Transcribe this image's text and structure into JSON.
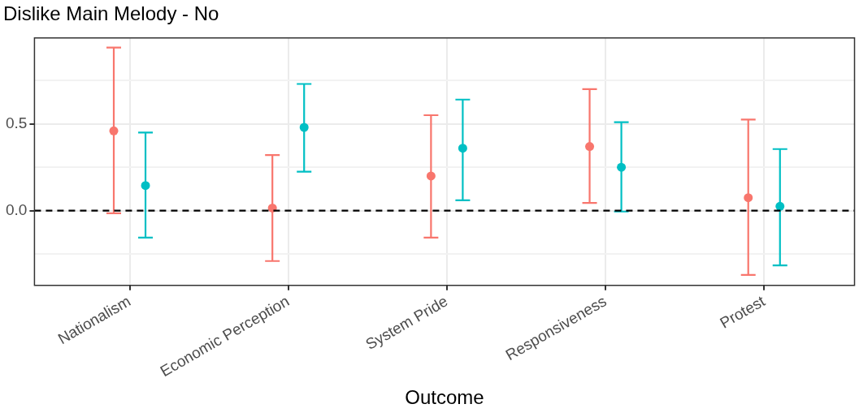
{
  "chart_data": {
    "type": "scatter",
    "title": "Dislike Main Melody - No",
    "xlabel": "Outcome",
    "categories": [
      "Nationalism",
      "Economic Perception",
      "System Pride",
      "Responsiveness",
      "Protest"
    ],
    "series": [
      {
        "color": "#f8766d",
        "values": [
          0.46,
          0.015,
          0.2,
          0.37,
          0.075
        ],
        "errors": [
          [
            -0.015,
            0.94
          ],
          [
            -0.29,
            0.32
          ],
          [
            -0.155,
            0.55
          ],
          [
            0.045,
            0.7
          ],
          [
            -0.37,
            0.525
          ]
        ]
      },
      {
        "color": "#00bfc4",
        "values": [
          0.145,
          0.48,
          0.36,
          0.25,
          0.025
        ],
        "errors": [
          [
            -0.155,
            0.45
          ],
          [
            0.225,
            0.73
          ],
          [
            0.06,
            0.64
          ],
          [
            -0.005,
            0.51
          ],
          [
            -0.315,
            0.355
          ]
        ]
      }
    ],
    "ylim": [
      -0.43,
      0.995
    ],
    "yticks": [
      {
        "value": -0.25,
        "label": null
      },
      {
        "value": 0,
        "label": "0.0"
      },
      {
        "value": 0.25,
        "label": null
      },
      {
        "value": 0.5,
        "label": "0.5"
      },
      {
        "value": 0.75,
        "label": null
      }
    ],
    "ref_lines": [
      {
        "axis": "y",
        "value": 0,
        "color": "#000000",
        "line_style": "dashed"
      }
    ],
    "grid": true,
    "marker": "circle",
    "legend": false
  }
}
